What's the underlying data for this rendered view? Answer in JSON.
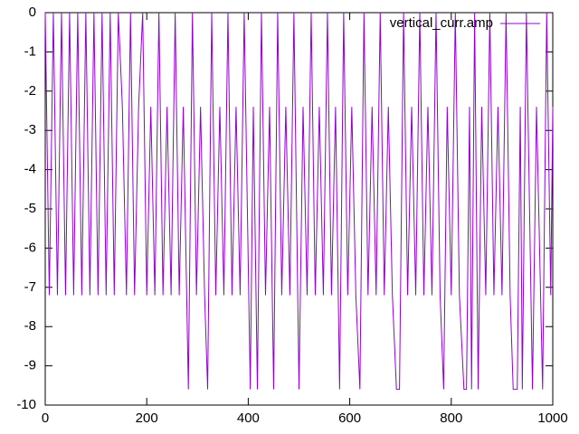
{
  "chart_data": {
    "type": "line",
    "x": [
      0,
      8,
      16,
      24,
      32,
      40,
      48,
      56,
      64,
      72,
      80,
      88,
      96,
      104,
      112,
      120,
      128,
      136,
      144,
      152,
      160,
      168,
      176,
      184,
      192,
      200,
      208,
      216,
      224,
      232,
      240,
      248,
      256,
      264,
      272,
      282,
      290,
      298,
      306,
      314,
      320,
      328,
      336,
      344,
      352,
      360,
      368,
      376,
      384,
      392,
      404,
      410,
      418,
      426,
      434,
      442,
      450,
      458,
      466,
      474,
      482,
      490,
      500,
      508,
      516,
      524,
      532,
      540,
      548,
      556,
      564,
      572,
      580,
      588,
      596,
      604,
      612,
      620,
      628,
      636,
      644,
      652,
      660,
      668,
      676,
      684,
      692,
      698,
      706,
      714,
      722,
      730,
      738,
      746,
      754,
      762,
      770,
      778,
      785,
      792,
      800,
      808,
      816,
      825,
      830,
      836,
      840,
      846,
      853,
      860,
      868,
      876,
      884,
      892,
      900,
      908,
      916,
      922,
      930,
      936,
      940,
      948,
      960,
      968,
      980,
      988,
      996,
      1000
    ],
    "series": [
      {
        "name": "vertical_curr.amp",
        "color": "#9400d3",
        "values": [
          0,
          -7.2,
          0,
          -7.2,
          0,
          -7.2,
          0,
          -7.2,
          0,
          -7.2,
          0,
          -7.2,
          0,
          -7.2,
          0,
          -7.2,
          0,
          -7.2,
          0,
          -2.4,
          -7.2,
          0,
          -7.2,
          -2.4,
          0,
          -7.2,
          -2.4,
          -7.2,
          0,
          -7.2,
          -2.4,
          -7.2,
          0,
          -7.2,
          -2.4,
          -9.6,
          0,
          -7.2,
          -2.4,
          -7.2,
          -9.6,
          0,
          -7.2,
          -2.4,
          -7.2,
          0,
          -7.2,
          -2.4,
          -7.2,
          0,
          -9.6,
          -2.4,
          -9.6,
          0,
          -7.2,
          -2.4,
          -9.6,
          0,
          -7.2,
          -2.4,
          -7.2,
          0,
          -9.6,
          -2.4,
          -7.2,
          0,
          -7.2,
          -2.4,
          -7.2,
          0,
          -7.2,
          -2.4,
          -9.6,
          0,
          -7.2,
          -2.4,
          -7.2,
          -9.6,
          0,
          -7.2,
          -2.4,
          -7.2,
          0,
          -7.2,
          -2.4,
          -7.2,
          -9.6,
          -9.6,
          0,
          -7.2,
          -2.4,
          -7.2,
          0,
          -7.2,
          -2.4,
          -7.2,
          0,
          -7.2,
          -9.6,
          -2.4,
          -7.2,
          0,
          -7.2,
          -9.6,
          -9.6,
          -2.4,
          -9.6,
          0,
          -9.6,
          -2.4,
          -7.2,
          0,
          -7.2,
          -2.4,
          -7.2,
          0,
          -7.2,
          -9.6,
          -9.6,
          -2.4,
          -9.6,
          0,
          -9.6,
          -2.4,
          -9.6,
          0,
          -7.2,
          -2.4
        ]
      }
    ],
    "xlim": [
      0,
      1000
    ],
    "xticks": [
      0,
      200,
      400,
      600,
      800,
      1000
    ],
    "ylim": [
      -10,
      0
    ],
    "yticks": [
      0,
      -1,
      -2,
      -3,
      -4,
      -5,
      -6,
      -7,
      -8,
      -9,
      -10
    ],
    "legend": "top-right"
  }
}
